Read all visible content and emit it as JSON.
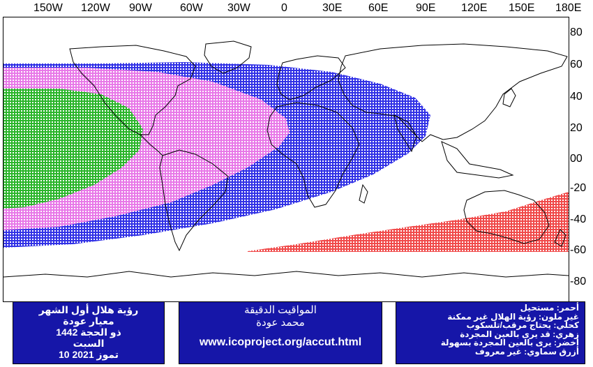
{
  "map": {
    "longitude_labels": [
      "150W",
      "120W",
      "90W",
      "60W",
      "30W",
      "0",
      "30E",
      "60E",
      "90E",
      "120E",
      "150E",
      "180E"
    ],
    "latitude_labels": [
      "80",
      "60",
      "40",
      "20",
      "00",
      "-20",
      "-40",
      "-60",
      "-80"
    ],
    "colors": {
      "green": "#2bb52b",
      "magenta": "#e879e8",
      "blue": "#3232e6",
      "red": "#f04a4a",
      "land": "#000000"
    }
  },
  "left_box": {
    "line1": "رؤية هلال أول الشهر",
    "line2": "معيار عودة",
    "line3": "ذو الحجة 1442",
    "line4": "السبت",
    "line5": "10 تموز 2021"
  },
  "center_box": {
    "line1": "المواقيت الدقيقة",
    "line2": "محمد عودة",
    "url": "www.icoproject.org/accut.html"
  },
  "legend": {
    "items": [
      "أحمر: مستحيل",
      "غير ملون: رؤية الهلال غير ممكنة",
      "كحلي: يحتاج مرقب/تلسكوب",
      "زهري: قد يرى بالعين المجردة",
      "أخضر: يرى بالعين المجردة بسهولة",
      "أزرق سماوي: غير معروف"
    ]
  }
}
